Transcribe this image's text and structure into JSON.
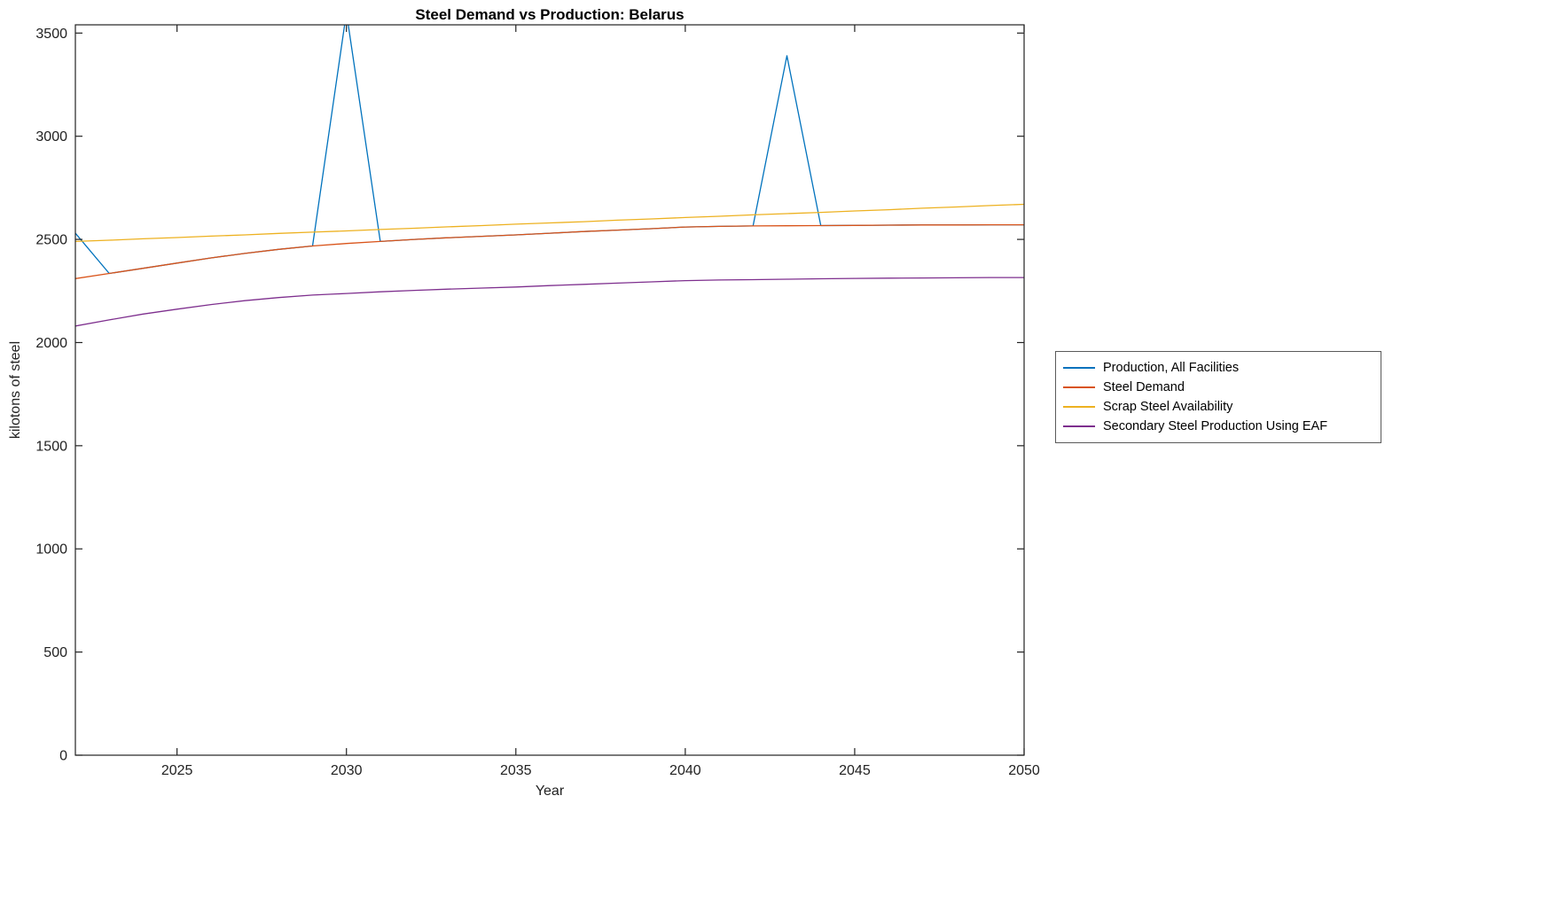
{
  "chart_data": {
    "type": "line",
    "title": "Steel Demand vs Production: Belarus",
    "xlabel": "Year",
    "ylabel": "kilotons of steel",
    "xlim": [
      2022,
      2050
    ],
    "ylim": [
      0,
      3540
    ],
    "xticks": [
      2025,
      2030,
      2035,
      2040,
      2045,
      2050
    ],
    "yticks": [
      0,
      500,
      1000,
      1500,
      2000,
      2500,
      3000,
      3500
    ],
    "grid": false,
    "legend_position": "right-outside",
    "axis_color": "#222222",
    "x": [
      2022,
      2023,
      2024,
      2025,
      2026,
      2027,
      2028,
      2029,
      2030,
      2031,
      2032,
      2033,
      2034,
      2035,
      2036,
      2037,
      2038,
      2039,
      2040,
      2041,
      2042,
      2043,
      2044,
      2045,
      2046,
      2047,
      2048,
      2049,
      2050
    ],
    "series": [
      {
        "name": "Production, All Facilities",
        "color": "#0072BD",
        "values": [
          2530,
          2335,
          2360,
          2385,
          2410,
          2432,
          2452,
          2468,
          3600,
          2490,
          2500,
          2508,
          2515,
          2522,
          2530,
          2538,
          2545,
          2552,
          2560,
          2563,
          2565,
          3390,
          2567,
          2568,
          2569,
          2570,
          2570,
          2571,
          2571
        ]
      },
      {
        "name": "Steel Demand",
        "color": "#D95319",
        "values": [
          2310,
          2335,
          2360,
          2385,
          2410,
          2432,
          2452,
          2468,
          2480,
          2490,
          2500,
          2508,
          2515,
          2522,
          2530,
          2538,
          2545,
          2552,
          2560,
          2563,
          2565,
          2566,
          2567,
          2568,
          2569,
          2570,
          2570,
          2571,
          2571
        ]
      },
      {
        "name": "Scrap Steel Availability",
        "color": "#EDB120",
        "values": [
          2490,
          2496,
          2503,
          2509,
          2516,
          2522,
          2529,
          2535,
          2541,
          2548,
          2554,
          2561,
          2567,
          2574,
          2580,
          2586,
          2593,
          2599,
          2606,
          2612,
          2619,
          2625,
          2631,
          2638,
          2644,
          2651,
          2657,
          2664,
          2670
        ]
      },
      {
        "name": "Secondary Steel Production Using EAF",
        "color": "#7E2F8E",
        "values": [
          2080,
          2110,
          2138,
          2162,
          2184,
          2203,
          2218,
          2230,
          2238,
          2246,
          2253,
          2259,
          2264,
          2269,
          2276,
          2282,
          2288,
          2294,
          2300,
          2303,
          2305,
          2307,
          2309,
          2311,
          2312,
          2313,
          2314,
          2315,
          2315
        ]
      }
    ]
  }
}
